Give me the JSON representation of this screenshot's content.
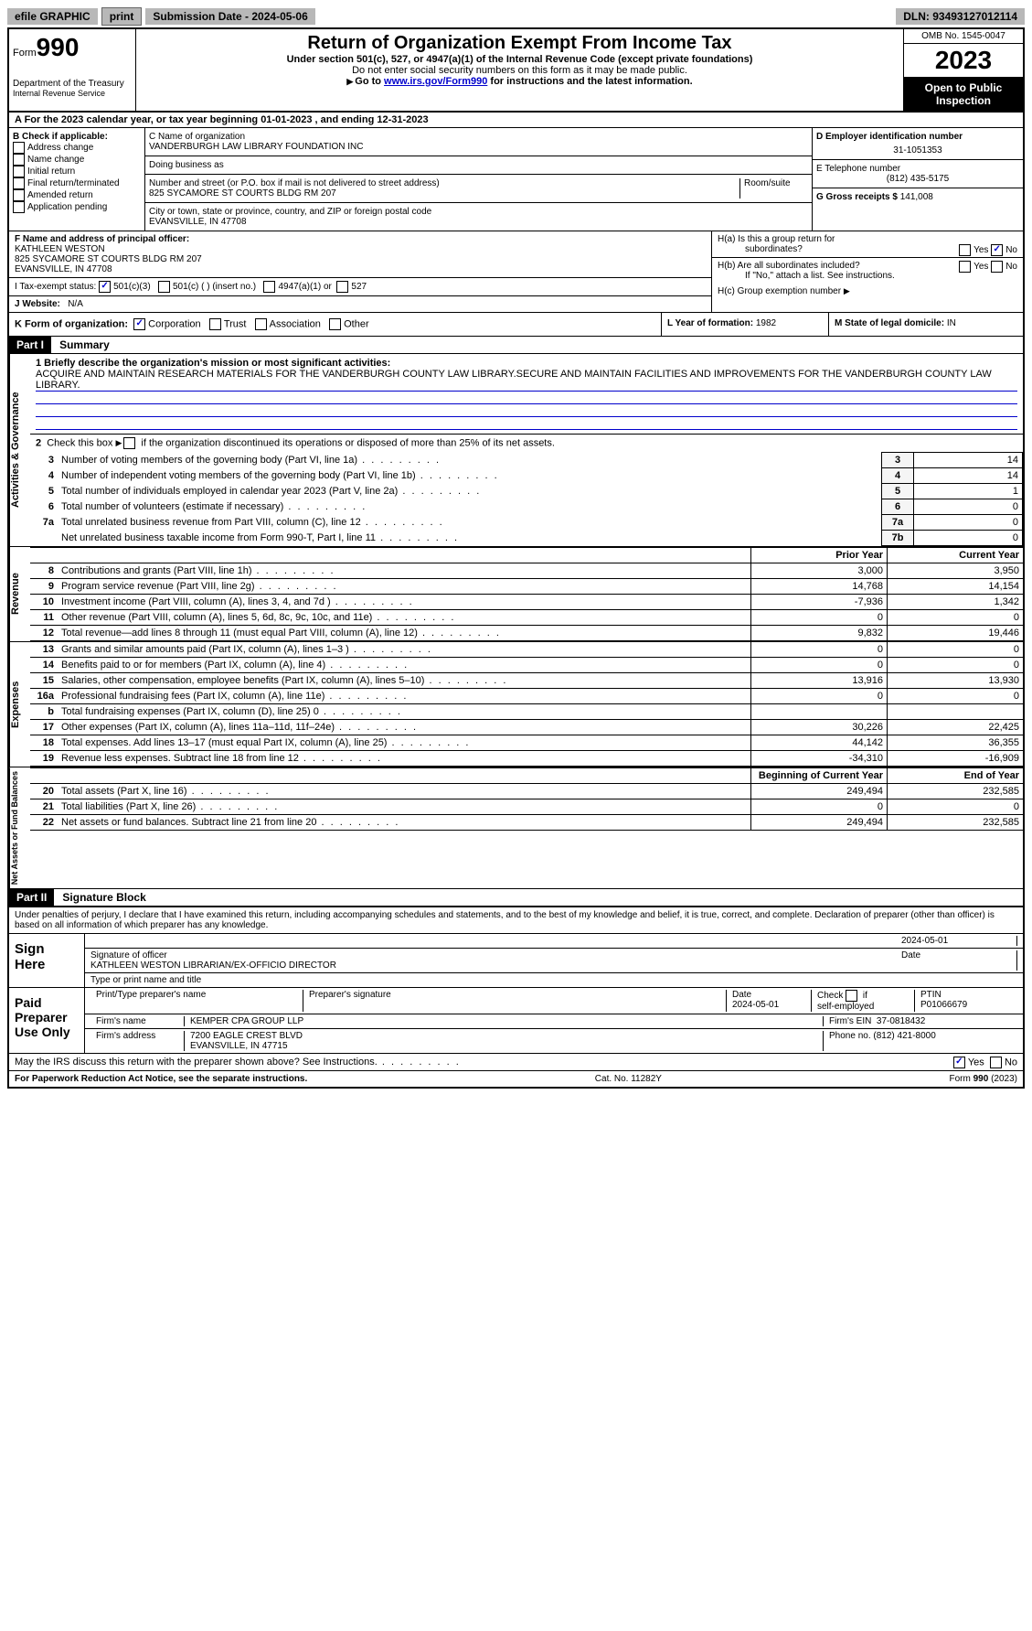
{
  "top": {
    "efile": "efile GRAPHIC",
    "print": "print",
    "sub_label": "Submission Date - 2024-05-06",
    "dln_label": "DLN: 93493127012114"
  },
  "header": {
    "form_prefix": "Form",
    "form_no": "990",
    "dept": "Department of the Treasury",
    "irs": "Internal Revenue Service",
    "title": "Return of Organization Exempt From Income Tax",
    "sub1": "Under section 501(c), 527, or 4947(a)(1) of the Internal Revenue Code (except private foundations)",
    "sub2": "Do not enter social security numbers on this form as it may be made public.",
    "sub3_pre": "Go to ",
    "sub3_link": "www.irs.gov/Form990",
    "sub3_post": " for instructions and the latest information.",
    "omb": "OMB No. 1545-0047",
    "year": "2023",
    "inspect": "Open to Public Inspection"
  },
  "rowA": "A For the 2023 calendar year, or tax year beginning 01-01-2023   , and ending 12-31-2023",
  "colB": {
    "label": "B Check if applicable:",
    "items": [
      "Address change",
      "Name change",
      "Initial return",
      "Final return/terminated",
      "Amended return",
      "Application pending"
    ]
  },
  "colC": {
    "name_label": "C Name of organization",
    "name": "VANDERBURGH LAW LIBRARY FOUNDATION INC",
    "dba_label": "Doing business as",
    "dba": "",
    "addr_label": "Number and street (or P.O. box if mail is not delivered to street address)",
    "room_label": "Room/suite",
    "addr": "825 SYCAMORE ST COURTS BLDG RM 207",
    "city_label": "City or town, state or province, country, and ZIP or foreign postal code",
    "city": "EVANSVILLE, IN  47708"
  },
  "colD": {
    "ein_label": "D Employer identification number",
    "ein": "31-1051353",
    "phone_label": "E Telephone number",
    "phone": "(812) 435-5175",
    "gross_label": "G Gross receipts $",
    "gross": "141,008"
  },
  "rowF": {
    "officer_label": "F Name and address of principal officer:",
    "officer_name": "KATHLEEN WESTON",
    "officer_addr1": "825 SYCAMORE ST COURTS BLDG RM 207",
    "officer_addr2": "EVANSVILLE, IN  47708",
    "tax_label": "I    Tax-exempt status:",
    "tax_501c3": "501(c)(3)",
    "tax_501c": "501(c) (  ) (insert no.)",
    "tax_4947": "4947(a)(1) or",
    "tax_527": "527",
    "web_label": "J   Website:",
    "web": "N/A"
  },
  "rowH": {
    "ha1": "H(a)  Is this a group return for",
    "ha2": "subordinates?",
    "hb1": "H(b)  Are all subordinates included?",
    "hb2": "If \"No,\" attach a list. See instructions.",
    "hc": "H(c)  Group exemption number",
    "yes": "Yes",
    "no": "No"
  },
  "rowK": {
    "label": "K Form of organization:",
    "corp": "Corporation",
    "trust": "Trust",
    "assoc": "Association",
    "other": "Other",
    "year_label": "L Year of formation:",
    "year": "1982",
    "state_label": "M State of legal domicile:",
    "state": "IN"
  },
  "part1": {
    "hdr": "Part I",
    "title": "Summary",
    "vtab1": "Activities & Governance",
    "vtab2": "Revenue",
    "vtab3": "Expenses",
    "vtab4": "Net Assets or Fund Balances",
    "q1_label": "1  Briefly describe the organization's mission or most significant activities:",
    "q1_text": "ACQUIRE AND MAINTAIN RESEARCH MATERIALS FOR THE VANDERBURGH COUNTY LAW LIBRARY.SECURE AND MAINTAIN FACILITIES AND IMPROVEMENTS FOR THE VANDERBURGH COUNTY LAW LIBRARY.",
    "q2": "2  Check this box        if the organization discontinued its operations or disposed of more than 25% of its net assets.",
    "rows": [
      {
        "n": "3",
        "label": "Number of voting members of the governing body (Part VI, line 1a)",
        "k": "3",
        "v": "14"
      },
      {
        "n": "4",
        "label": "Number of independent voting members of the governing body (Part VI, line 1b)",
        "k": "4",
        "v": "14"
      },
      {
        "n": "5",
        "label": "Total number of individuals employed in calendar year 2023 (Part V, line 2a)",
        "k": "5",
        "v": "1"
      },
      {
        "n": "6",
        "label": "Total number of volunteers (estimate if necessary)",
        "k": "6",
        "v": "0"
      },
      {
        "n": "7a",
        "label": "Total unrelated business revenue from Part VIII, column (C), line 12",
        "k": "7a",
        "v": "0"
      },
      {
        "n": "",
        "label": "Net unrelated business taxable income from Form 990-T, Part I, line 11",
        "k": "7b",
        "v": "0"
      }
    ],
    "col_prior": "Prior Year",
    "col_current": "Current Year",
    "rev": [
      {
        "n": "8",
        "label": "Contributions and grants (Part VIII, line 1h)",
        "p": "3,000",
        "c": "3,950"
      },
      {
        "n": "9",
        "label": "Program service revenue (Part VIII, line 2g)",
        "p": "14,768",
        "c": "14,154"
      },
      {
        "n": "10",
        "label": "Investment income (Part VIII, column (A), lines 3, 4, and 7d )",
        "p": "-7,936",
        "c": "1,342"
      },
      {
        "n": "11",
        "label": "Other revenue (Part VIII, column (A), lines 5, 6d, 8c, 9c, 10c, and 11e)",
        "p": "0",
        "c": "0"
      },
      {
        "n": "12",
        "label": "Total revenue—add lines 8 through 11 (must equal Part VIII, column (A), line 12)",
        "p": "9,832",
        "c": "19,446"
      }
    ],
    "exp": [
      {
        "n": "13",
        "label": "Grants and similar amounts paid (Part IX, column (A), lines 1–3 )",
        "p": "0",
        "c": "0"
      },
      {
        "n": "14",
        "label": "Benefits paid to or for members (Part IX, column (A), line 4)",
        "p": "0",
        "c": "0"
      },
      {
        "n": "15",
        "label": "Salaries, other compensation, employee benefits (Part IX, column (A), lines 5–10)",
        "p": "13,916",
        "c": "13,930"
      },
      {
        "n": "16a",
        "label": "Professional fundraising fees (Part IX, column (A), line 11e)",
        "p": "0",
        "c": "0"
      },
      {
        "n": "b",
        "label": "Total fundraising expenses (Part IX, column (D), line 25) 0",
        "p": "",
        "c": "",
        "gray": true
      },
      {
        "n": "17",
        "label": "Other expenses (Part IX, column (A), lines 11a–11d, 11f–24e)",
        "p": "30,226",
        "c": "22,425"
      },
      {
        "n": "18",
        "label": "Total expenses. Add lines 13–17 (must equal Part IX, column (A), line 25)",
        "p": "44,142",
        "c": "36,355"
      },
      {
        "n": "19",
        "label": "Revenue less expenses. Subtract line 18 from line 12",
        "p": "-34,310",
        "c": "-16,909"
      }
    ],
    "col_begin": "Beginning of Current Year",
    "col_end": "End of Year",
    "net": [
      {
        "n": "20",
        "label": "Total assets (Part X, line 16)",
        "p": "249,494",
        "c": "232,585"
      },
      {
        "n": "21",
        "label": "Total liabilities (Part X, line 26)",
        "p": "0",
        "c": "0"
      },
      {
        "n": "22",
        "label": "Net assets or fund balances. Subtract line 21 from line 20",
        "p": "249,494",
        "c": "232,585"
      }
    ]
  },
  "part2": {
    "hdr": "Part II",
    "title": "Signature Block",
    "decl": "Under penalties of perjury, I declare that I have examined this return, including accompanying schedules and statements, and to the best of my knowledge and belief, it is true, correct, and complete. Declaration of preparer (other than officer) is based on all information of which preparer has any knowledge.",
    "sign_here": "Sign Here",
    "sig_officer": "Signature of officer",
    "sig_name": "KATHLEEN WESTON  LIBRARIAN/EX-OFFICIO DIRECTOR",
    "sig_type": "Type or print name and title",
    "date_label": "Date",
    "date_val": "2024-05-01",
    "paid": "Paid Preparer Use Only",
    "prep_name_label": "Print/Type preparer's name",
    "prep_sig_label": "Preparer's signature",
    "prep_date": "2024-05-01",
    "self_emp": "Check        if self-employed",
    "ptin_label": "PTIN",
    "ptin": "P01066679",
    "firm_name_label": "Firm's name",
    "firm_name": "KEMPER CPA GROUP LLP",
    "firm_ein_label": "Firm's EIN",
    "firm_ein": "37-0818432",
    "firm_addr_label": "Firm's address",
    "firm_addr1": "7200 EAGLE CREST BLVD",
    "firm_addr2": "EVANSVILLE, IN  47715",
    "firm_phone_label": "Phone no.",
    "firm_phone": "(812) 421-8000",
    "discuss": "May the IRS discuss this return with the preparer shown above? See Instructions."
  },
  "footer": {
    "left": "For Paperwork Reduction Act Notice, see the separate instructions.",
    "mid": "Cat. No. 11282Y",
    "right": "Form 990 (2023)"
  }
}
